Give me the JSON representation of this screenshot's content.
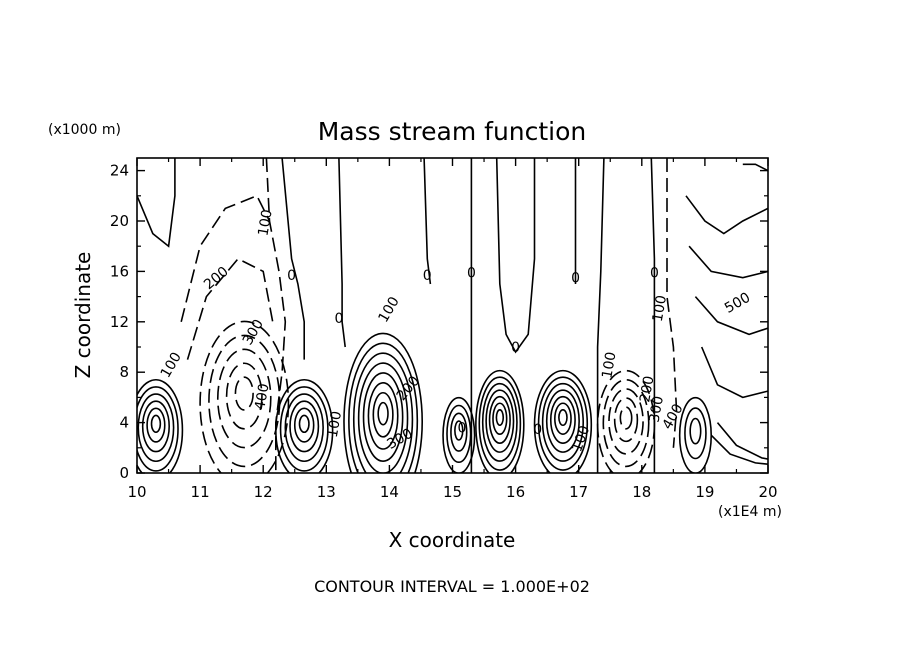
{
  "chart_data": {
    "type": "contour",
    "title": "Mass stream function",
    "xlabel": "X coordinate",
    "ylabel": "Z coordinate",
    "x_unit": "(x1E4 m)",
    "y_unit": "(x1000 m)",
    "footer": "CONTOUR INTERVAL = 1.000E+02",
    "xlim": [
      10,
      20
    ],
    "ylim": [
      0,
      25
    ],
    "xticks": [
      "10",
      "11",
      "12",
      "13",
      "14",
      "15",
      "16",
      "17",
      "18",
      "19",
      "20"
    ],
    "yticks": [
      "0",
      "4",
      "8",
      "12",
      "16",
      "20",
      "24"
    ],
    "contour_interval": 100,
    "grid": false,
    "dashed_means": "negative values",
    "cells": [
      {
        "x": 10.3,
        "z": 4.0,
        "sign": "+",
        "rings": 6
      },
      {
        "x": 11.7,
        "z": 6.5,
        "sign": "-",
        "rings": 5
      },
      {
        "x": 12.65,
        "z": 4.0,
        "sign": "+",
        "rings": 6
      },
      {
        "x": 13.9,
        "z": 4.8,
        "sign": "+",
        "rings": 8
      },
      {
        "x": 15.1,
        "z": 3.5,
        "sign": "+",
        "rings": 4
      },
      {
        "x": 15.75,
        "z": 4.5,
        "sign": "+",
        "rings": 7
      },
      {
        "x": 16.75,
        "z": 4.5,
        "sign": "+",
        "rings": 7
      },
      {
        "x": 17.75,
        "z": 4.5,
        "sign": "-",
        "rings": 5
      },
      {
        "x": 18.85,
        "z": 3.5,
        "sign": "+",
        "rings": 3
      }
    ],
    "contour_labels": [
      {
        "text": "100",
        "x": 12.1,
        "z": 19.8,
        "angle": -80
      },
      {
        "text": "200",
        "x": 11.3,
        "z": 15.2,
        "angle": -40
      },
      {
        "text": "300",
        "x": 11.9,
        "z": 11.0,
        "angle": -60
      },
      {
        "text": "100",
        "x": 10.6,
        "z": 8.4,
        "angle": -60
      },
      {
        "text": "400",
        "x": 12.05,
        "z": 6.0,
        "angle": -80
      },
      {
        "text": "0",
        "x": 12.45,
        "z": 15.3,
        "angle": 0
      },
      {
        "text": "0",
        "x": 13.2,
        "z": 11.9,
        "angle": 0
      },
      {
        "text": "100",
        "x": 13.2,
        "z": 3.8,
        "angle": -80
      },
      {
        "text": "100",
        "x": 14.05,
        "z": 12.8,
        "angle": -60
      },
      {
        "text": "200",
        "x": 14.35,
        "z": 6.5,
        "angle": -50
      },
      {
        "text": "300",
        "x": 14.2,
        "z": 2.4,
        "angle": -30
      },
      {
        "text": "0",
        "x": 14.6,
        "z": 15.3,
        "angle": 0
      },
      {
        "text": "0",
        "x": 15.3,
        "z": 15.5,
        "angle": 0
      },
      {
        "text": "0",
        "x": 15.15,
        "z": 3.2,
        "angle": 0
      },
      {
        "text": "0",
        "x": 16.0,
        "z": 9.6,
        "angle": 0
      },
      {
        "text": "0",
        "x": 16.35,
        "z": 3.1,
        "angle": 0
      },
      {
        "text": "0",
        "x": 16.95,
        "z": 15.1,
        "angle": 0
      },
      {
        "text": "100",
        "x": 17.1,
        "z": 2.6,
        "angle": -70
      },
      {
        "text": "100",
        "x": 17.55,
        "z": 8.5,
        "angle": -80
      },
      {
        "text": "0",
        "x": 18.2,
        "z": 15.5,
        "angle": 0
      },
      {
        "text": "100",
        "x": 18.35,
        "z": 13.0,
        "angle": -80
      },
      {
        "text": "200",
        "x": 18.15,
        "z": 6.6,
        "angle": -80
      },
      {
        "text": "300",
        "x": 18.3,
        "z": 5.0,
        "angle": -80
      },
      {
        "text": "400",
        "x": 18.55,
        "z": 4.3,
        "angle": -60
      },
      {
        "text": "500",
        "x": 19.55,
        "z": 13.2,
        "angle": -30
      }
    ]
  }
}
